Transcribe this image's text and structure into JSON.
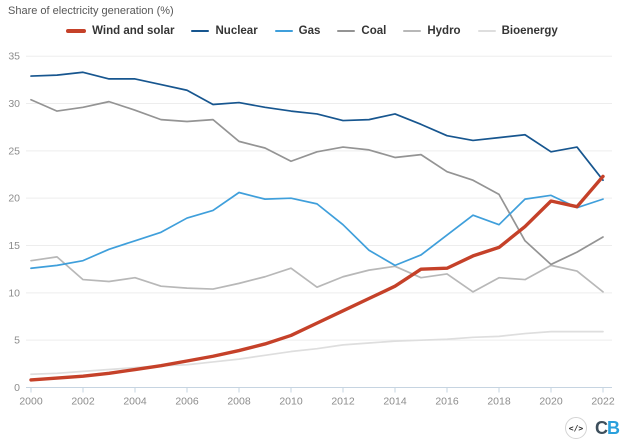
{
  "header": {
    "title": "Share of electricity generation (%)"
  },
  "chart_data": {
    "type": "line",
    "title": "Share of electricity generation (%)",
    "xlabel": "",
    "ylabel": "",
    "x": [
      2000,
      2001,
      2002,
      2003,
      2004,
      2005,
      2006,
      2007,
      2008,
      2009,
      2010,
      2011,
      2012,
      2013,
      2014,
      2015,
      2016,
      2017,
      2018,
      2019,
      2020,
      2021,
      2022
    ],
    "xticks": [
      2000,
      2002,
      2004,
      2006,
      2008,
      2010,
      2012,
      2014,
      2016,
      2018,
      2020,
      2022
    ],
    "yticks": [
      0,
      5,
      10,
      15,
      20,
      25,
      30,
      35
    ],
    "ylim": [
      0,
      35
    ],
    "grid": "horizontal",
    "legend_position": "top",
    "series": [
      {
        "name": "Wind and solar",
        "color": "#c54129",
        "width": 3.4,
        "values": [
          0.8,
          1.0,
          1.2,
          1.5,
          1.9,
          2.3,
          2.8,
          3.3,
          3.9,
          4.6,
          5.5,
          6.8,
          8.1,
          9.4,
          10.7,
          12.5,
          12.6,
          13.9,
          14.8,
          17.0,
          19.7,
          19.1,
          22.3
        ]
      },
      {
        "name": "Nuclear",
        "color": "#17568f",
        "width": 1.7,
        "values": [
          32.9,
          33.0,
          33.3,
          32.6,
          32.6,
          32.0,
          31.4,
          29.9,
          30.1,
          29.6,
          29.2,
          28.9,
          28.2,
          28.3,
          28.9,
          27.8,
          26.6,
          26.1,
          26.4,
          26.7,
          24.9,
          25.4,
          21.9
        ]
      },
      {
        "name": "Gas",
        "color": "#3f9fdb",
        "width": 1.7,
        "values": [
          12.6,
          12.9,
          13.4,
          14.6,
          15.5,
          16.4,
          17.9,
          18.7,
          20.6,
          19.9,
          20.0,
          19.4,
          17.2,
          14.5,
          12.9,
          14.0,
          16.1,
          18.2,
          17.2,
          19.9,
          20.3,
          19.0,
          19.9
        ]
      },
      {
        "name": "Coal",
        "color": "#949494",
        "width": 1.7,
        "values": [
          30.4,
          29.2,
          29.6,
          30.2,
          29.3,
          28.3,
          28.1,
          28.3,
          26.0,
          25.3,
          23.9,
          24.9,
          25.4,
          25.1,
          24.3,
          24.6,
          22.8,
          21.9,
          20.4,
          15.5,
          13.0,
          14.3,
          15.9
        ]
      },
      {
        "name": "Hydro",
        "color": "#b8b8b8",
        "width": 1.7,
        "values": [
          13.4,
          13.8,
          11.4,
          11.2,
          11.6,
          10.7,
          10.5,
          10.4,
          11.0,
          11.7,
          12.6,
          10.6,
          11.7,
          12.4,
          12.8,
          11.6,
          12.0,
          10.1,
          11.6,
          11.4,
          12.9,
          12.3,
          10.1
        ]
      },
      {
        "name": "Bioenergy",
        "color": "#dedede",
        "width": 1.7,
        "values": [
          1.4,
          1.5,
          1.7,
          1.9,
          2.1,
          2.3,
          2.4,
          2.7,
          3.0,
          3.4,
          3.8,
          4.1,
          4.5,
          4.7,
          4.9,
          5.0,
          5.1,
          5.3,
          5.4,
          5.7,
          5.9,
          5.9,
          5.9
        ]
      }
    ]
  },
  "footer": {
    "embed_label": "</>",
    "logo": {
      "c": "C",
      "b": "B"
    }
  }
}
